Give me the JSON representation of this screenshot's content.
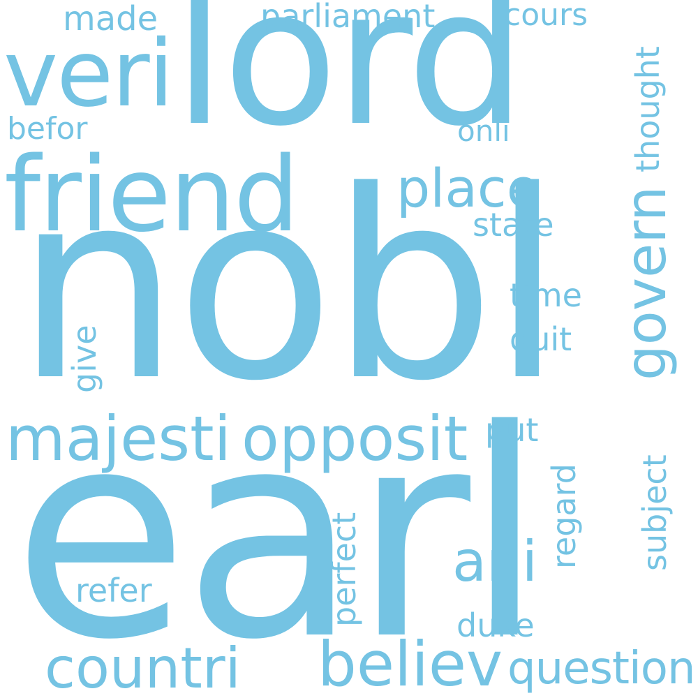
{
  "word_color": "#74c3e3",
  "background_color": "#ffffff",
  "words": {
    "nobl": "nobl",
    "earl": "earl",
    "lord": "lord",
    "friend": "friend",
    "veri": "veri",
    "majesti": "majesti",
    "opposit": "opposit",
    "countri": "countri",
    "believ": "believ",
    "question": "question",
    "govern": "govern",
    "place": "place",
    "ani": "ani",
    "parliament": "parliament",
    "made": "made",
    "cours": "cours",
    "befor": "befor",
    "onli": "onli",
    "thought": "thought",
    "state": "state",
    "time": "time",
    "quit": "quit",
    "give": "give",
    "put": "put",
    "regard": "regard",
    "subject": "subject",
    "perfect": "perfect",
    "refer": "refer",
    "duke": "duke"
  }
}
